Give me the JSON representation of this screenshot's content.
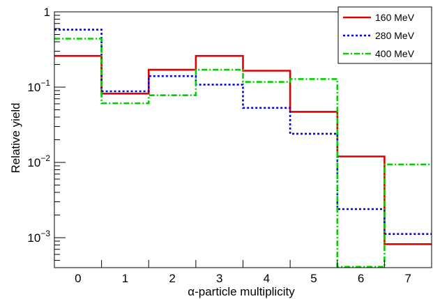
{
  "chart_data": {
    "type": "line",
    "step": true,
    "title": "",
    "xlabel": "α-particle multiplicity",
    "ylabel": "Relative yield",
    "x_categories": [
      "0",
      "1",
      "2",
      "3",
      "4",
      "5",
      "6",
      "7"
    ],
    "xlim": [
      -0.5,
      7.5
    ],
    "ylim": [
      0.0004,
      1.0
    ],
    "yscale": "log",
    "y_tick_labels": [
      {
        "value": 1,
        "base": "1",
        "exp": ""
      },
      {
        "value": 0.1,
        "base": "10",
        "exp": "−1"
      },
      {
        "value": 0.01,
        "base": "10",
        "exp": "−2"
      },
      {
        "value": 0.001,
        "base": "10",
        "exp": "−3"
      }
    ],
    "grid": false,
    "legend_position": "top-right",
    "series": [
      {
        "name": "160 MeV",
        "color": "#e00000",
        "dash": "solid",
        "values": [
          0.26,
          0.082,
          0.17,
          0.26,
          0.165,
          0.047,
          0.012,
          0.00082
        ]
      },
      {
        "name": "280 MeV",
        "color": "#0000e0",
        "dash": "dotted",
        "values": [
          0.58,
          0.088,
          0.14,
          0.108,
          0.053,
          0.024,
          0.0024,
          0.00112
        ]
      },
      {
        "name": "400 MeV",
        "color": "#00d000",
        "dash": "dashdot",
        "values": [
          0.44,
          0.061,
          0.078,
          0.17,
          0.117,
          0.128,
          0.00041,
          0.0094
        ]
      }
    ]
  }
}
